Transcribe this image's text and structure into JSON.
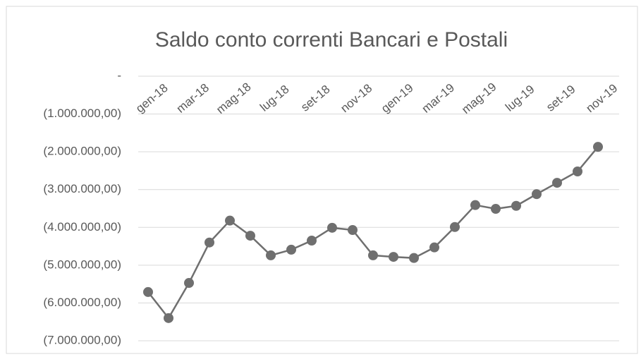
{
  "chart_data": {
    "type": "line",
    "title": "Saldo conto correnti Bancari e Postali",
    "categories": [
      "gen-18",
      null,
      "mar-18",
      null,
      "mag-18",
      null,
      "lug-18",
      null,
      "set-18",
      null,
      "nov-18",
      null,
      "gen-19",
      null,
      "mar-19",
      null,
      "mag-19",
      null,
      "lug-19",
      null,
      "set-19",
      null,
      "nov-19"
    ],
    "series": [
      {
        "name": "Saldo",
        "color": "#6f6f6f",
        "values": [
          -5710000,
          -6400000,
          -5470000,
          -4400000,
          -3820000,
          -4220000,
          -4740000,
          -4590000,
          -4350000,
          -4010000,
          -4070000,
          -4740000,
          -4780000,
          -4810000,
          -4530000,
          -3990000,
          -3410000,
          -3510000,
          -3430000,
          -3120000,
          -2820000,
          -2520000,
          -1870000
        ]
      }
    ],
    "ylim": [
      -7000000,
      0
    ],
    "yticks": [
      {
        "value": 0,
        "label": "-"
      },
      {
        "value": -1000000,
        "label": "(1.000.000,00)"
      },
      {
        "value": -2000000,
        "label": "(2.000.000,00)"
      },
      {
        "value": -3000000,
        "label": "(3.000.000,00)"
      },
      {
        "value": -4000000,
        "label": "(4.000.000,00)"
      },
      {
        "value": -5000000,
        "label": "(5.000.000,00)"
      },
      {
        "value": -6000000,
        "label": "(6.000.000,00)"
      },
      {
        "value": -7000000,
        "label": "(7.000.000,00)"
      }
    ],
    "grid": true
  }
}
